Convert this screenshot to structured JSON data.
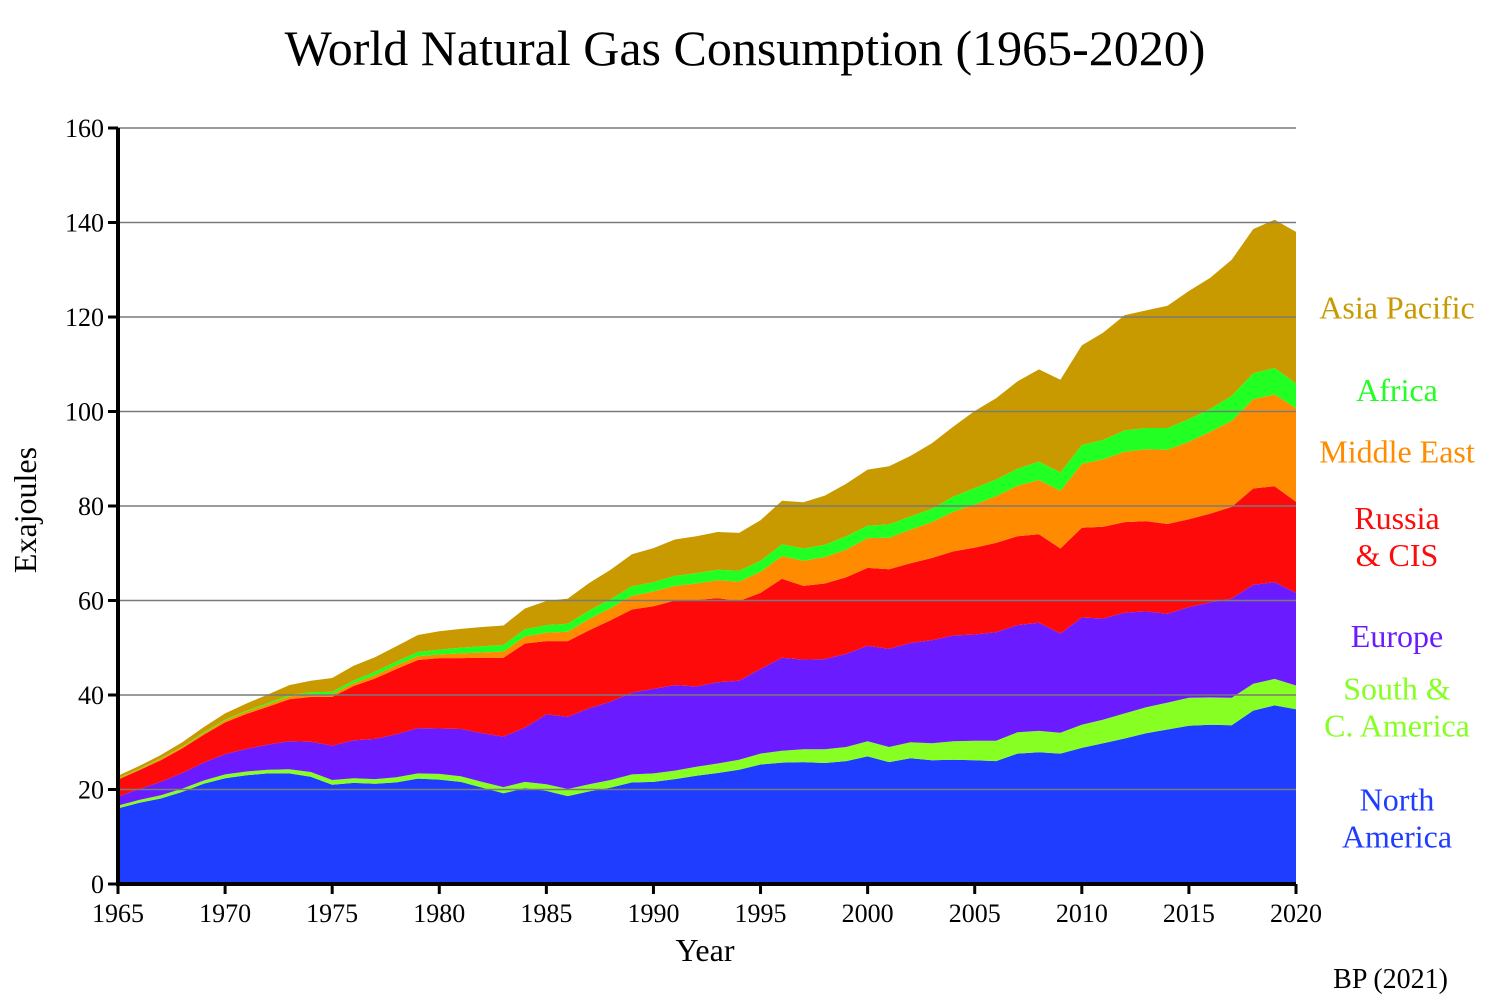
{
  "chart_data": {
    "type": "area",
    "title": "World Natural Gas Consumption (1965-2020)",
    "xlabel": "Year",
    "ylabel": "Exajoules",
    "source": "BP (2021)",
    "xlim": [
      1965,
      2020
    ],
    "ylim": [
      0,
      160
    ],
    "x_ticks": [
      "1965",
      "1970",
      "1975",
      "1980",
      "1985",
      "1990",
      "1995",
      "2000",
      "2005",
      "2010",
      "2015",
      "2020"
    ],
    "y_ticks": [
      "0",
      "20",
      "40",
      "60",
      "80",
      "100",
      "120",
      "140",
      "160"
    ],
    "grid": "horizontal",
    "stacked": true,
    "x": [
      1965,
      1966,
      1967,
      1968,
      1969,
      1970,
      1971,
      1972,
      1973,
      1974,
      1975,
      1976,
      1977,
      1978,
      1979,
      1980,
      1981,
      1982,
      1983,
      1984,
      1985,
      1986,
      1987,
      1988,
      1989,
      1990,
      1991,
      1992,
      1993,
      1994,
      1995,
      1996,
      1997,
      1998,
      1999,
      2000,
      2001,
      2002,
      2003,
      2004,
      2005,
      2006,
      2007,
      2008,
      2009,
      2010,
      2011,
      2012,
      2013,
      2014,
      2015,
      2016,
      2017,
      2018,
      2019,
      2020
    ],
    "series": [
      {
        "name": "North America",
        "label_lines": [
          "North",
          "America"
        ],
        "color": "#1f3dff",
        "values": [
          16.0,
          17.2,
          18.1,
          19.5,
          21.2,
          22.4,
          23.0,
          23.4,
          23.4,
          22.7,
          21.0,
          21.4,
          21.2,
          21.5,
          22.3,
          22.1,
          21.6,
          20.4,
          19.2,
          20.3,
          19.7,
          18.6,
          19.6,
          20.4,
          21.5,
          21.6,
          22.2,
          22.9,
          23.5,
          24.2,
          25.3,
          25.7,
          25.8,
          25.6,
          26.0,
          27.0,
          25.8,
          26.6,
          26.2,
          26.3,
          26.2,
          26.0,
          27.6,
          27.9,
          27.6,
          28.8,
          29.8,
          30.8,
          31.9,
          32.7,
          33.5,
          33.7,
          33.6,
          36.7,
          37.8,
          37.0
        ]
      },
      {
        "name": "South & C. America",
        "label_lines": [
          "South &",
          "C. America"
        ],
        "color": "#88ff22",
        "values": [
          0.6,
          0.6,
          0.7,
          0.7,
          0.7,
          0.8,
          0.8,
          0.8,
          0.9,
          1.0,
          1.0,
          1.0,
          1.0,
          1.1,
          1.1,
          1.2,
          1.2,
          1.2,
          1.3,
          1.3,
          1.4,
          1.5,
          1.5,
          1.6,
          1.7,
          1.8,
          1.8,
          1.9,
          2.0,
          2.1,
          2.3,
          2.5,
          2.7,
          2.9,
          3.0,
          3.2,
          3.2,
          3.4,
          3.6,
          3.9,
          4.1,
          4.3,
          4.5,
          4.5,
          4.4,
          4.9,
          5.0,
          5.3,
          5.5,
          5.7,
          5.9,
          5.8,
          5.8,
          5.7,
          5.6,
          5.0
        ]
      },
      {
        "name": "Europe",
        "color": "#6a1bff",
        "values": [
          1.9,
          2.3,
          2.8,
          3.3,
          3.8,
          4.3,
          4.8,
          5.3,
          5.9,
          6.4,
          7.3,
          8.0,
          8.5,
          9.1,
          9.6,
          9.6,
          10.0,
          10.3,
          10.7,
          11.5,
          14.8,
          15.3,
          16.1,
          16.6,
          17.3,
          17.9,
          18.1,
          17.0,
          17.2,
          16.7,
          17.9,
          19.7,
          19.0,
          19.1,
          19.7,
          20.2,
          20.8,
          21.0,
          21.8,
          22.4,
          22.5,
          23.0,
          22.7,
          22.9,
          21.0,
          22.7,
          21.4,
          21.3,
          20.3,
          18.8,
          19.2,
          20.1,
          21.0,
          20.9,
          20.5,
          19.6
        ]
      },
      {
        "name": "Russia & CIS",
        "label_lines": [
          "Russia",
          "& CIS"
        ],
        "color": "#ff0a0a",
        "values": [
          3.6,
          4.0,
          4.6,
          5.2,
          5.9,
          6.7,
          7.4,
          8.0,
          8.9,
          9.5,
          10.3,
          11.5,
          12.8,
          13.8,
          14.4,
          14.9,
          15.0,
          16.0,
          16.7,
          17.8,
          15.5,
          16.0,
          16.5,
          17.2,
          17.6,
          17.5,
          17.9,
          18.3,
          17.8,
          16.9,
          16.1,
          16.7,
          15.6,
          16.0,
          16.2,
          16.5,
          16.8,
          16.9,
          17.4,
          17.8,
          18.4,
          18.9,
          18.8,
          18.7,
          18.0,
          19.0,
          19.4,
          19.2,
          19.1,
          19.0,
          18.6,
          18.8,
          19.4,
          20.4,
          20.3,
          19.3
        ]
      },
      {
        "name": "Middle East",
        "color": "#ff8c00",
        "values": [
          0.2,
          0.2,
          0.3,
          0.3,
          0.3,
          0.4,
          0.5,
          0.5,
          0.6,
          0.6,
          0.6,
          0.6,
          0.7,
          0.8,
          0.8,
          0.8,
          1.0,
          1.1,
          1.3,
          1.5,
          1.8,
          2.0,
          2.4,
          2.6,
          2.9,
          3.1,
          3.1,
          3.5,
          3.8,
          4.1,
          4.5,
          4.8,
          5.3,
          5.6,
          5.9,
          6.3,
          6.7,
          7.1,
          7.6,
          8.4,
          9.1,
          9.9,
          10.7,
          11.5,
          12.2,
          13.5,
          14.3,
          14.9,
          15.2,
          15.7,
          16.4,
          17.3,
          18.2,
          18.9,
          19.4,
          19.8
        ]
      },
      {
        "name": "Africa",
        "color": "#22ff22",
        "values": [
          0.1,
          0.1,
          0.1,
          0.1,
          0.2,
          0.2,
          0.2,
          0.3,
          0.3,
          0.4,
          0.5,
          0.6,
          0.7,
          0.8,
          0.9,
          1.0,
          1.2,
          1.3,
          1.4,
          1.5,
          1.6,
          1.7,
          1.8,
          1.9,
          2.0,
          2.0,
          2.1,
          2.2,
          2.2,
          2.3,
          2.3,
          2.5,
          2.6,
          2.6,
          2.8,
          2.6,
          2.8,
          2.8,
          2.8,
          3.2,
          3.5,
          3.5,
          3.6,
          3.9,
          3.9,
          4.0,
          4.1,
          4.5,
          4.5,
          4.6,
          4.8,
          4.9,
          5.3,
          5.5,
          5.6,
          5.2
        ]
      },
      {
        "name": "Asia Pacific",
        "color": "#c89a00",
        "values": [
          0.5,
          0.6,
          0.7,
          0.9,
          1.1,
          1.3,
          1.5,
          1.8,
          2.1,
          2.4,
          2.9,
          3.1,
          3.1,
          3.2,
          3.6,
          3.9,
          4.0,
          4.1,
          4.1,
          4.4,
          5.1,
          5.3,
          5.8,
          6.2,
          6.8,
          7.2,
          7.7,
          7.8,
          8.0,
          8.0,
          8.6,
          9.2,
          9.8,
          10.4,
          11.1,
          11.9,
          12.3,
          12.8,
          13.9,
          14.8,
          16.3,
          17.2,
          18.5,
          19.5,
          19.6,
          21.1,
          22.7,
          24.4,
          24.9,
          25.9,
          27.1,
          27.7,
          28.8,
          30.5,
          31.4,
          32.1
        ]
      }
    ],
    "legend": "right-side labels"
  }
}
